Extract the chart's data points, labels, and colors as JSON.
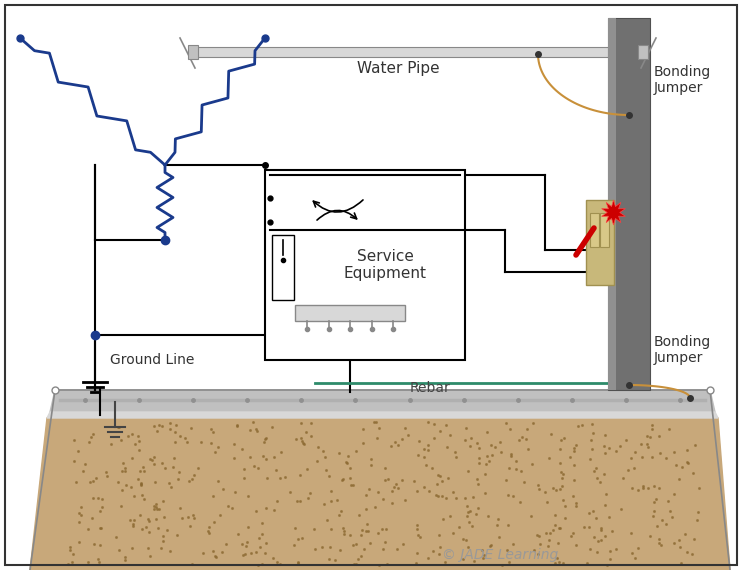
{
  "bg_color": "#ffffff",
  "copyright": "© JADE Learning",
  "water_pipe_label": "Water Pipe",
  "rebar_label": "Rebar",
  "ground_line_label": "Ground Line",
  "service_eq_label": "Service\nEquipment",
  "bonding_jumper_label": "Bonding\nJumper",
  "circuit_color": "#1a3a8c",
  "wire_color": "#000000",
  "green_wire_color": "#2e8b6a",
  "bonding_wire_color": "#c8903a",
  "steel_color": "#707070",
  "spark_color": "#cc0000",
  "concrete_color": "#c8a87a",
  "rebar_color": "#b8b8b8"
}
